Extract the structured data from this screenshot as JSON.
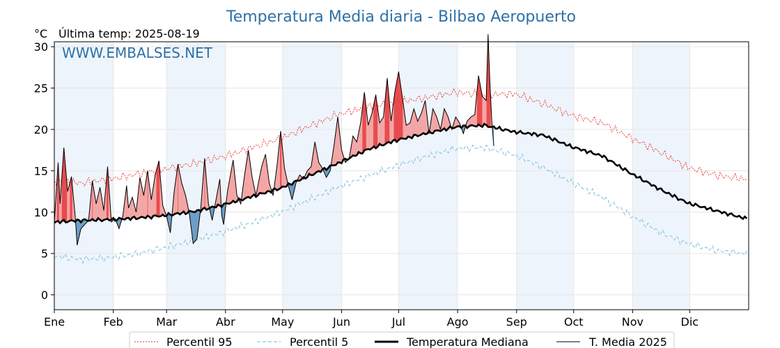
{
  "chart_data": {
    "type": "line",
    "title": "Temperatura Media diaria - Bilbao Aeropuerto",
    "unit": "°C",
    "subtitle": "Última temp: 2025-08-19",
    "watermark": "WWW.EMBALSES.NET",
    "xlabel": "",
    "ylabel": "",
    "ylim": [
      -1.8,
      30.6
    ],
    "yticks": [
      0,
      5,
      10,
      15,
      20,
      25,
      30
    ],
    "months": [
      "Ene",
      "Feb",
      "Mar",
      "Abr",
      "May",
      "Jun",
      "Jul",
      "Ago",
      "Sep",
      "Oct",
      "Nov",
      "Dic"
    ],
    "month_days": [
      31,
      28,
      31,
      30,
      31,
      30,
      31,
      31,
      30,
      31,
      30,
      31
    ],
    "grid": true,
    "legend_position": "bottom",
    "colors": {
      "p95": "#e8312b",
      "p5": "#8ec9df",
      "median": "#000000",
      "t2025": "#000000",
      "above_fill": "#f3a4a4",
      "above_fill_strong": "#e8474a",
      "below_fill": "#6b9ac4",
      "band": "#eef4fb",
      "title": "#2e70a6"
    },
    "series": [
      {
        "name": "Percentil 95",
        "key": "p95",
        "points": [
          [
            1,
            13.8
          ],
          [
            15,
            13.5
          ],
          [
            31,
            14.0
          ],
          [
            45,
            14.6
          ],
          [
            59,
            15.2
          ],
          [
            75,
            15.9
          ],
          [
            90,
            16.7
          ],
          [
            105,
            17.8
          ],
          [
            120,
            18.9
          ],
          [
            135,
            20.4
          ],
          [
            150,
            21.8
          ],
          [
            166,
            22.7
          ],
          [
            181,
            23.3
          ],
          [
            196,
            23.8
          ],
          [
            212,
            24.5
          ],
          [
            227,
            24.2
          ],
          [
            243,
            24.3
          ],
          [
            258,
            23.1
          ],
          [
            273,
            21.7
          ],
          [
            289,
            20.8
          ],
          [
            304,
            19.0
          ],
          [
            319,
            17.3
          ],
          [
            334,
            15.4
          ],
          [
            350,
            14.4
          ],
          [
            365,
            14.0
          ]
        ]
      },
      {
        "name": "Percentil 5",
        "key": "p5",
        "points": [
          [
            1,
            4.7
          ],
          [
            15,
            4.3
          ],
          [
            31,
            4.5
          ],
          [
            45,
            5.0
          ],
          [
            59,
            5.7
          ],
          [
            75,
            6.6
          ],
          [
            90,
            7.6
          ],
          [
            105,
            8.7
          ],
          [
            120,
            10.0
          ],
          [
            135,
            11.5
          ],
          [
            150,
            13.0
          ],
          [
            166,
            14.4
          ],
          [
            181,
            15.6
          ],
          [
            196,
            16.7
          ],
          [
            212,
            17.7
          ],
          [
            227,
            17.8
          ],
          [
            243,
            16.9
          ],
          [
            258,
            15.4
          ],
          [
            273,
            13.6
          ],
          [
            289,
            11.8
          ],
          [
            304,
            9.6
          ],
          [
            319,
            7.6
          ],
          [
            334,
            6.2
          ],
          [
            350,
            5.3
          ],
          [
            365,
            5.0
          ]
        ]
      },
      {
        "name": "Temperatura Mediana",
        "key": "median",
        "points": [
          [
            1,
            8.8
          ],
          [
            15,
            9.0
          ],
          [
            31,
            9.1
          ],
          [
            45,
            9.3
          ],
          [
            59,
            9.6
          ],
          [
            75,
            10.1
          ],
          [
            90,
            10.9
          ],
          [
            105,
            11.9
          ],
          [
            120,
            12.9
          ],
          [
            135,
            14.4
          ],
          [
            150,
            15.9
          ],
          [
            166,
            17.6
          ],
          [
            181,
            18.7
          ],
          [
            196,
            19.5
          ],
          [
            212,
            20.3
          ],
          [
            227,
            20.5
          ],
          [
            243,
            19.7
          ],
          [
            258,
            19.3
          ],
          [
            273,
            17.9
          ],
          [
            289,
            16.8
          ],
          [
            304,
            14.7
          ],
          [
            319,
            12.8
          ],
          [
            334,
            11.1
          ],
          [
            350,
            10.1
          ],
          [
            365,
            9.2
          ]
        ]
      },
      {
        "name": "T. Media 2025",
        "key": "t2025",
        "points": [
          [
            1,
            8.8
          ],
          [
            3,
            16.0
          ],
          [
            4,
            11.0
          ],
          [
            6,
            17.8
          ],
          [
            8,
            12.5
          ],
          [
            10,
            14.3
          ],
          [
            12,
            9.5
          ],
          [
            13,
            6.0
          ],
          [
            15,
            8.0
          ],
          [
            19,
            9.0
          ],
          [
            21,
            13.8
          ],
          [
            23,
            11.0
          ],
          [
            25,
            13.0
          ],
          [
            27,
            10.2
          ],
          [
            29,
            15.5
          ],
          [
            31,
            8.8
          ],
          [
            33,
            9.2
          ],
          [
            35,
            8.0
          ],
          [
            37,
            9.5
          ],
          [
            39,
            13.2
          ],
          [
            40,
            10.5
          ],
          [
            42,
            11.8
          ],
          [
            44,
            10.0
          ],
          [
            46,
            14.2
          ],
          [
            48,
            12.0
          ],
          [
            50,
            15.0
          ],
          [
            52,
            11.5
          ],
          [
            54,
            14.5
          ],
          [
            56,
            16.2
          ],
          [
            58,
            10.8
          ],
          [
            60,
            9.5
          ],
          [
            62,
            7.5
          ],
          [
            64,
            12.5
          ],
          [
            66,
            15.8
          ],
          [
            68,
            13.5
          ],
          [
            70,
            12.0
          ],
          [
            72,
            9.8
          ],
          [
            74,
            6.2
          ],
          [
            76,
            6.8
          ],
          [
            78,
            10.5
          ],
          [
            80,
            16.5
          ],
          [
            82,
            11.0
          ],
          [
            84,
            9.0
          ],
          [
            86,
            11.5
          ],
          [
            88,
            14.0
          ],
          [
            89,
            9.6
          ],
          [
            90,
            8.5
          ],
          [
            92,
            12.5
          ],
          [
            95,
            16.3
          ],
          [
            97,
            12.0
          ],
          [
            99,
            11.0
          ],
          [
            101,
            14.5
          ],
          [
            103,
            17.5
          ],
          [
            105,
            14.2
          ],
          [
            107,
            12.0
          ],
          [
            110,
            15.5
          ],
          [
            112,
            17.0
          ],
          [
            114,
            13.5
          ],
          [
            116,
            12.0
          ],
          [
            118,
            15.5
          ],
          [
            120,
            19.8
          ],
          [
            122,
            15.3
          ],
          [
            124,
            13.2
          ],
          [
            126,
            11.5
          ],
          [
            128,
            13.5
          ],
          [
            130,
            14.5
          ],
          [
            132,
            14.0
          ],
          [
            134,
            15.0
          ],
          [
            136,
            15.5
          ],
          [
            138,
            18.5
          ],
          [
            140,
            16.0
          ],
          [
            142,
            15.3
          ],
          [
            144,
            14.2
          ],
          [
            146,
            15.0
          ],
          [
            148,
            18.0
          ],
          [
            150,
            21.5
          ],
          [
            152,
            17.5
          ],
          [
            154,
            16.0
          ],
          [
            156,
            16.5
          ],
          [
            158,
            19.2
          ],
          [
            160,
            18.5
          ],
          [
            162,
            20.8
          ],
          [
            164,
            24.5
          ],
          [
            166,
            20.5
          ],
          [
            168,
            22.0
          ],
          [
            170,
            24.2
          ],
          [
            172,
            20.8
          ],
          [
            174,
            21.5
          ],
          [
            176,
            26.2
          ],
          [
            178,
            21.0
          ],
          [
            180,
            24.5
          ],
          [
            182,
            27.0
          ],
          [
            184,
            23.8
          ],
          [
            186,
            20.5
          ],
          [
            188,
            20.8
          ],
          [
            190,
            22.5
          ],
          [
            192,
            21.0
          ],
          [
            194,
            22.0
          ],
          [
            196,
            23.5
          ],
          [
            198,
            19.5
          ],
          [
            200,
            22.5
          ],
          [
            202,
            21.5
          ],
          [
            204,
            20.0
          ],
          [
            206,
            22.5
          ],
          [
            208,
            21.5
          ],
          [
            210,
            20.0
          ],
          [
            212,
            21.5
          ],
          [
            214,
            20.8
          ],
          [
            216,
            19.5
          ],
          [
            218,
            21.0
          ],
          [
            220,
            21.5
          ],
          [
            222,
            21.8
          ],
          [
            224,
            26.5
          ],
          [
            226,
            24.0
          ],
          [
            228,
            23.5
          ],
          [
            229,
            31.5
          ],
          [
            230,
            25.5
          ],
          [
            231,
            21.0
          ],
          [
            232,
            18.0
          ]
        ]
      }
    ]
  }
}
